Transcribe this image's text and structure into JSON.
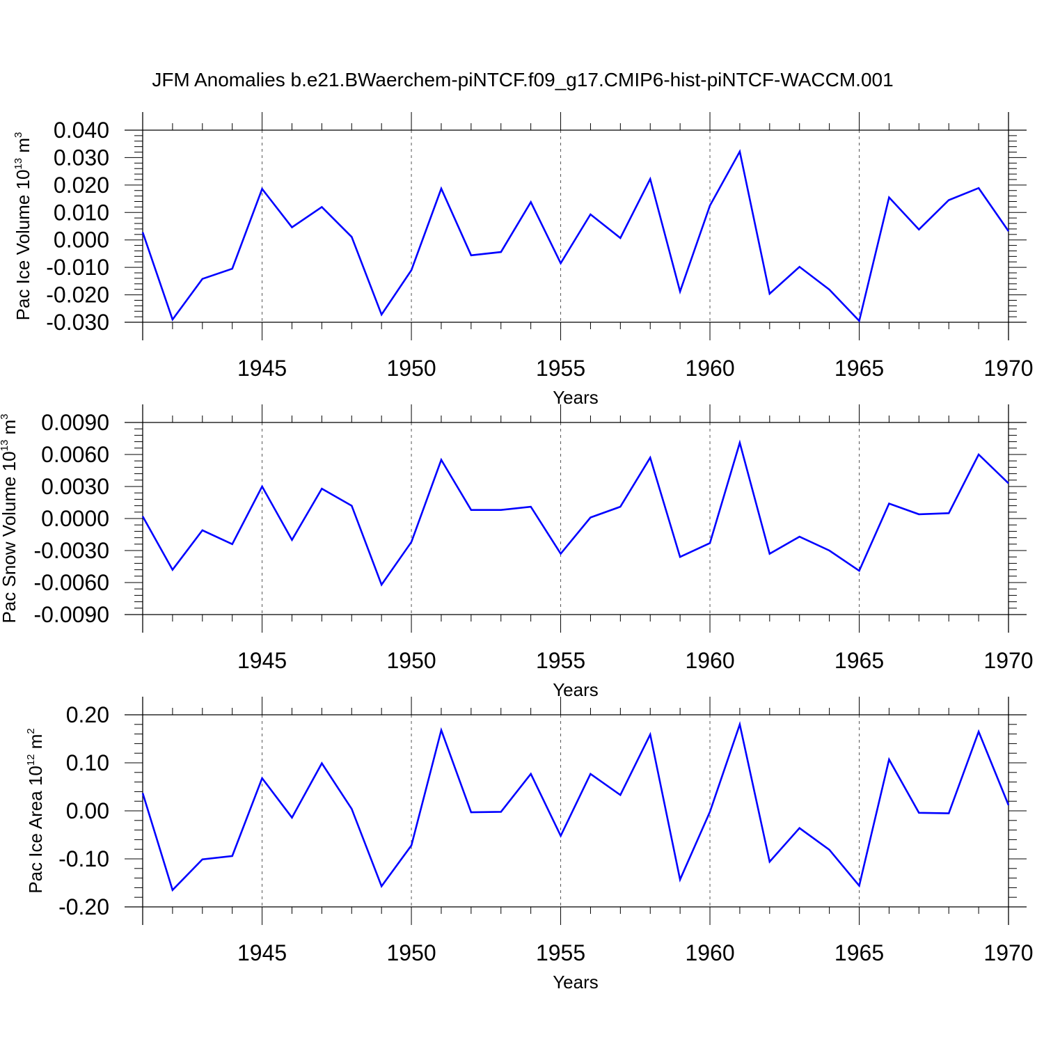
{
  "title": "JFM Anomalies b.e21.BWaerchem-piNTCF.f09_g17.CMIP6-hist-piNTCF-WACCM.001",
  "colors": {
    "line": "#0000ff",
    "axis": "#000000",
    "grid": "#555555"
  },
  "chart_data": [
    {
      "type": "line",
      "ylabel": {
        "text": "Pac Ice Volume 10",
        "sup": "13",
        "unit": " m",
        "unit_sup": "3"
      },
      "xlabel": "Years",
      "xlim": [
        1941,
        1970
      ],
      "ylim": [
        -0.03,
        0.04
      ],
      "yticks": [
        -0.03,
        -0.02,
        -0.01,
        0.0,
        0.01,
        0.02,
        0.03,
        0.04
      ],
      "ytick_labels": [
        "-0.030",
        "-0.020",
        "-0.010",
        "0.000",
        "0.010",
        "0.020",
        "0.030",
        "0.040"
      ],
      "xticks": [
        1945,
        1950,
        1955,
        1960,
        1965,
        1970
      ],
      "xtick_labels": [
        "1945",
        "1950",
        "1955",
        "1960",
        "1965",
        "1970"
      ],
      "x": [
        1941,
        1942,
        1943,
        1944,
        1945,
        1946,
        1947,
        1948,
        1949,
        1950,
        1951,
        1952,
        1953,
        1954,
        1955,
        1956,
        1957,
        1958,
        1959,
        1960,
        1961,
        1962,
        1963,
        1964,
        1965,
        1966,
        1967,
        1968,
        1969,
        1970
      ],
      "series": [
        {
          "values": [
            0.0028,
            -0.029,
            -0.0142,
            -0.0105,
            0.0186,
            0.0046,
            0.012,
            0.0011,
            -0.0272,
            -0.011,
            0.0187,
            -0.0056,
            -0.0044,
            0.0138,
            -0.0085,
            0.0093,
            0.0007,
            0.0222,
            -0.0188,
            0.0125,
            0.0322,
            -0.0196,
            -0.0098,
            -0.0181,
            -0.0295,
            0.0155,
            0.0038,
            0.0145,
            0.0189,
            0.0032
          ]
        }
      ]
    },
    {
      "type": "line",
      "ylabel": {
        "text": "Pac Snow Volume 10",
        "sup": "13",
        "unit": " m",
        "unit_sup": "3"
      },
      "xlabel": "Years",
      "xlim": [
        1941,
        1970
      ],
      "ylim": [
        -0.009,
        0.009
      ],
      "yticks": [
        -0.009,
        -0.006,
        -0.003,
        0.0,
        0.003,
        0.006,
        0.009
      ],
      "ytick_labels": [
        "-0.0090",
        "-0.0060",
        "-0.0030",
        "0.0000",
        "0.0030",
        "0.0060",
        "0.0090"
      ],
      "xticks": [
        1945,
        1950,
        1955,
        1960,
        1965,
        1970
      ],
      "xtick_labels": [
        "1945",
        "1950",
        "1955",
        "1960",
        "1965",
        "1970"
      ],
      "x": [
        1941,
        1942,
        1943,
        1944,
        1945,
        1946,
        1947,
        1948,
        1949,
        1950,
        1951,
        1952,
        1953,
        1954,
        1955,
        1956,
        1957,
        1958,
        1959,
        1960,
        1961,
        1962,
        1963,
        1964,
        1965,
        1966,
        1967,
        1968,
        1969,
        1970
      ],
      "series": [
        {
          "values": [
            0.0002,
            -0.0048,
            -0.0011,
            -0.0024,
            0.003,
            -0.002,
            0.0028,
            0.0012,
            -0.0062,
            -0.0022,
            0.0055,
            0.0008,
            0.0008,
            0.0011,
            -0.0033,
            0.0001,
            0.0011,
            0.0057,
            -0.0036,
            -0.0023,
            0.0071,
            -0.0033,
            -0.0017,
            -0.003,
            -0.0049,
            0.0014,
            0.0004,
            0.0005,
            0.006,
            0.0033
          ]
        }
      ]
    },
    {
      "type": "line",
      "ylabel": {
        "text": "Pac Ice Area 10",
        "sup": "12",
        "unit": " m",
        "unit_sup": "2"
      },
      "xlabel": "Years",
      "xlim": [
        1941,
        1970
      ],
      "ylim": [
        -0.2,
        0.2
      ],
      "yticks": [
        -0.2,
        -0.1,
        0.0,
        0.1,
        0.2
      ],
      "ytick_labels": [
        "-0.20",
        "-0.10",
        "0.00",
        "0.10",
        "0.20"
      ],
      "xticks": [
        1945,
        1950,
        1955,
        1960,
        1965,
        1970
      ],
      "xtick_labels": [
        "1945",
        "1950",
        "1955",
        "1960",
        "1965",
        "1970"
      ],
      "x": [
        1941,
        1942,
        1943,
        1944,
        1945,
        1946,
        1947,
        1948,
        1949,
        1950,
        1951,
        1952,
        1953,
        1954,
        1955,
        1956,
        1957,
        1958,
        1959,
        1960,
        1961,
        1962,
        1963,
        1964,
        1965,
        1966,
        1967,
        1968,
        1969,
        1970
      ],
      "series": [
        {
          "values": [
            0.037,
            -0.165,
            -0.101,
            -0.094,
            0.068,
            -0.014,
            0.099,
            0.004,
            -0.157,
            -0.072,
            0.168,
            -0.003,
            -0.002,
            0.077,
            -0.052,
            0.077,
            0.033,
            0.159,
            -0.143,
            -0.002,
            0.18,
            -0.106,
            -0.036,
            -0.081,
            -0.156,
            0.107,
            -0.004,
            -0.005,
            0.165,
            0.012
          ]
        }
      ]
    }
  ]
}
